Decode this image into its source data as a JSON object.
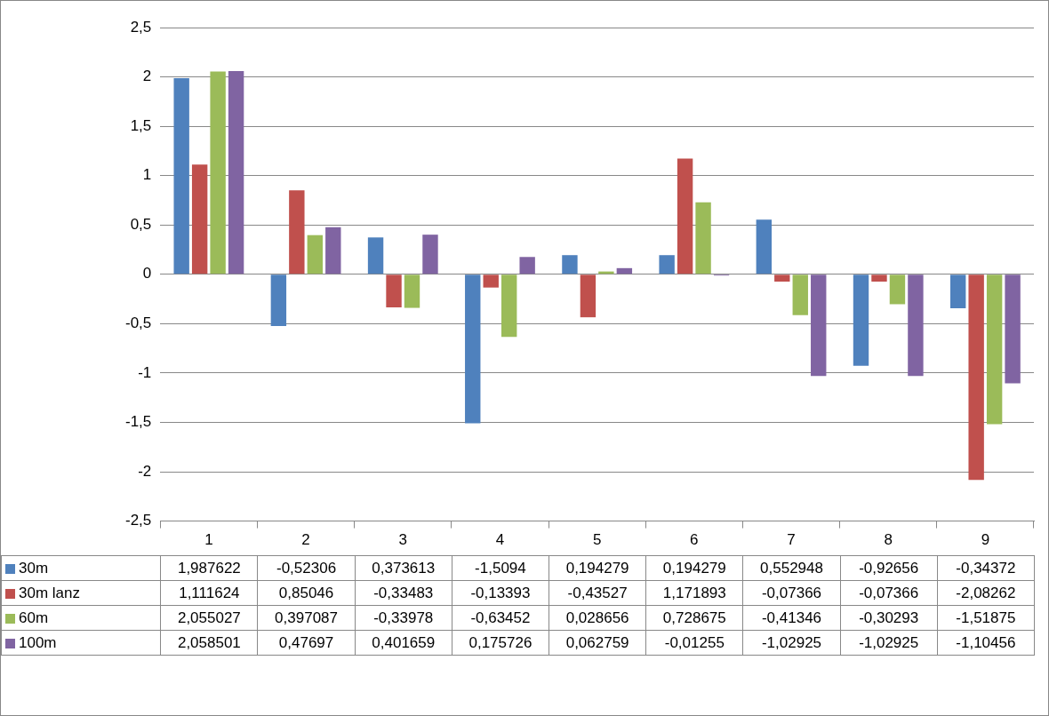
{
  "chart_data": {
    "type": "bar",
    "categories": [
      "1",
      "2",
      "3",
      "4",
      "5",
      "6",
      "7",
      "8",
      "9"
    ],
    "series": [
      {
        "name": "30m",
        "color": "#4f81bd",
        "values": [
          1.987622,
          -0.52306,
          0.373613,
          -1.5094,
          0.194279,
          0.194279,
          0.552948,
          -0.92656,
          -0.34372
        ],
        "value_labels": [
          "1,987622",
          "-0,52306",
          "0,373613",
          "-1,5094",
          "0,194279",
          "0,194279",
          "0,552948",
          "-0,92656",
          "-0,34372"
        ]
      },
      {
        "name": "30m lanz",
        "color": "#c0504d",
        "values": [
          1.111624,
          0.85046,
          -0.33483,
          -0.13393,
          -0.43527,
          1.171893,
          -0.07366,
          -0.07366,
          -2.08262
        ],
        "value_labels": [
          "1,111624",
          "0,85046",
          "-0,33483",
          "-0,13393",
          "-0,43527",
          "1,171893",
          "-0,07366",
          "-0,07366",
          "-2,08262"
        ]
      },
      {
        "name": "60m",
        "color": "#9bbb59",
        "values": [
          2.055027,
          0.397087,
          -0.33978,
          -0.63452,
          0.028656,
          0.728675,
          -0.41346,
          -0.30293,
          -1.51875
        ],
        "value_labels": [
          "2,055027",
          "0,397087",
          "-0,33978",
          "-0,63452",
          "0,028656",
          "0,728675",
          "-0,41346",
          "-0,30293",
          "-1,51875"
        ]
      },
      {
        "name": "100m",
        "color": "#8064a2",
        "values": [
          2.058501,
          0.47697,
          0.401659,
          0.175726,
          0.062759,
          -0.01255,
          -1.02925,
          -1.02925,
          -1.10456
        ],
        "value_labels": [
          "2,058501",
          "0,47697",
          "0,401659",
          "0,175726",
          "0,062759",
          "-0,01255",
          "-1,02925",
          "-1,02925",
          "-1,10456"
        ]
      }
    ],
    "ylim": [
      -2.5,
      2.5
    ],
    "yticks": [
      {
        "value": -2.5,
        "label": "-2,5"
      },
      -2,
      {
        "value": -1.5,
        "label": "-1,5"
      },
      -1,
      {
        "value": -0.5,
        "label": "-0,5"
      },
      0,
      {
        "value": 0.5,
        "label": "0,5"
      },
      1,
      {
        "value": 1.5,
        "label": "1,5"
      },
      2,
      {
        "value": 2.5,
        "label": "2,5"
      }
    ],
    "grid": "y",
    "legend": "bottom"
  }
}
